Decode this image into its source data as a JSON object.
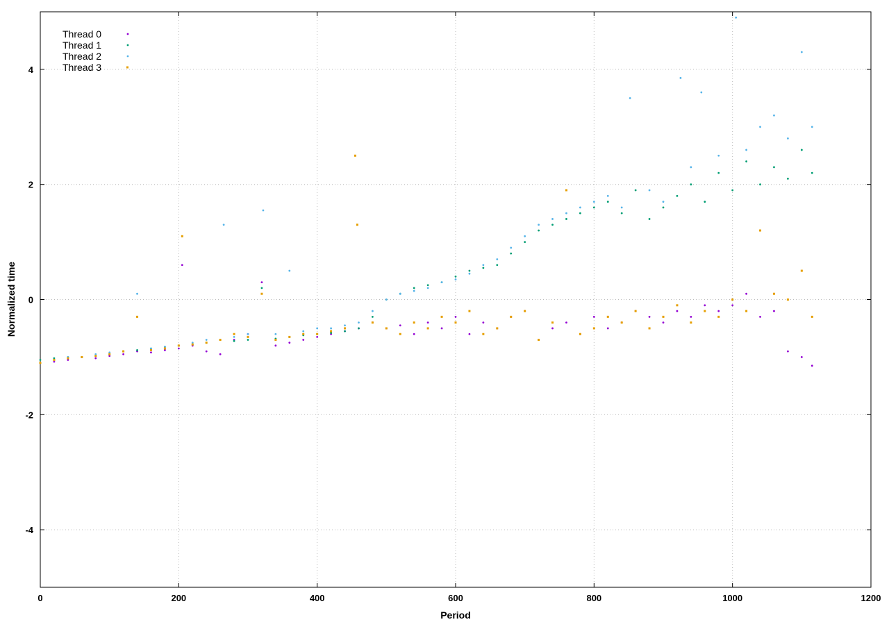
{
  "chart_data": {
    "type": "scatter",
    "title": "",
    "xlabel": "Period",
    "ylabel": "Normalized time",
    "xlim": [
      0,
      1200
    ],
    "ylim": [
      -5,
      5
    ],
    "xticks": [
      0,
      200,
      400,
      600,
      800,
      1000,
      1200
    ],
    "yticks": [
      -4,
      -2,
      0,
      2,
      4
    ],
    "grid": true,
    "legend_position": "top-left",
    "series": [
      {
        "name": "Thread 0",
        "color": "#9400d3",
        "marker": "dot",
        "x": [
          0,
          20,
          40,
          60,
          80,
          100,
          120,
          140,
          160,
          180,
          200,
          205,
          220,
          240,
          260,
          280,
          300,
          320,
          340,
          360,
          380,
          400,
          420,
          440,
          460,
          480,
          500,
          520,
          540,
          560,
          580,
          600,
          620,
          640,
          660,
          680,
          700,
          720,
          740,
          760,
          780,
          800,
          820,
          840,
          860,
          880,
          900,
          920,
          940,
          960,
          980,
          1000,
          1020,
          1040,
          1060,
          1080,
          1100,
          1115
        ],
        "y": [
          -1.1,
          -1.08,
          -1.05,
          -1.0,
          -1.02,
          -0.98,
          -0.95,
          -0.9,
          -0.92,
          -0.88,
          -0.85,
          0.6,
          -0.8,
          -0.9,
          -0.95,
          -0.7,
          -0.6,
          0.3,
          -0.8,
          -0.75,
          -0.7,
          -0.65,
          -0.6,
          -0.55,
          -0.5,
          -0.4,
          -0.5,
          -0.45,
          -0.6,
          -0.4,
          -0.5,
          -0.3,
          -0.6,
          -0.4,
          -0.5,
          -0.3,
          -0.2,
          -0.7,
          -0.5,
          -0.4,
          -0.6,
          -0.3,
          -0.5,
          -0.4,
          -0.2,
          -0.3,
          -0.4,
          -0.2,
          -0.3,
          -0.1,
          -0.2,
          -0.1,
          0.1,
          -0.3,
          -0.2,
          -0.9,
          -1.0,
          -1.15
        ]
      },
      {
        "name": "Thread 1",
        "color": "#009e73",
        "marker": "dot",
        "x": [
          0,
          20,
          40,
          60,
          80,
          100,
          120,
          140,
          160,
          180,
          200,
          220,
          240,
          260,
          280,
          300,
          320,
          340,
          360,
          380,
          400,
          420,
          440,
          460,
          480,
          500,
          520,
          540,
          560,
          580,
          600,
          620,
          640,
          660,
          680,
          700,
          720,
          740,
          760,
          780,
          800,
          820,
          840,
          860,
          880,
          900,
          920,
          940,
          960,
          980,
          1000,
          1020,
          1040,
          1060,
          1080,
          1100,
          1115
        ],
        "y": [
          -1.05,
          -1.02,
          -1.0,
          -1.0,
          -0.98,
          -0.95,
          -0.9,
          -0.88,
          -0.85,
          -0.82,
          -0.8,
          -0.78,
          -0.75,
          -0.7,
          -0.72,
          -0.7,
          0.2,
          -0.68,
          -0.65,
          -0.62,
          -0.6,
          -0.58,
          -0.55,
          -0.5,
          -0.3,
          0.0,
          0.1,
          0.2,
          0.25,
          0.3,
          0.4,
          0.5,
          0.55,
          0.6,
          0.8,
          1.0,
          1.2,
          1.3,
          1.4,
          1.5,
          1.6,
          1.7,
          1.5,
          1.9,
          1.4,
          1.6,
          1.8,
          2.0,
          1.7,
          2.2,
          1.9,
          2.4,
          2.0,
          2.3,
          2.1,
          2.6,
          2.2
        ]
      },
      {
        "name": "Thread 2",
        "color": "#56b4e9",
        "marker": "dot",
        "x": [
          0,
          20,
          40,
          60,
          80,
          100,
          120,
          140,
          160,
          180,
          200,
          220,
          240,
          265,
          280,
          300,
          322,
          340,
          360,
          380,
          400,
          420,
          440,
          460,
          480,
          500,
          520,
          540,
          560,
          580,
          600,
          620,
          640,
          660,
          680,
          700,
          720,
          740,
          760,
          780,
          800,
          820,
          840,
          852,
          880,
          900,
          925,
          940,
          955,
          980,
          1005,
          1020,
          1040,
          1060,
          1080,
          1100,
          1115
        ],
        "y": [
          -1.1,
          -1.05,
          -1.0,
          -1.0,
          -0.95,
          -0.92,
          -0.9,
          0.1,
          -0.85,
          -0.82,
          -0.8,
          -0.75,
          -0.7,
          1.3,
          -0.65,
          -0.6,
          1.55,
          -0.6,
          0.5,
          -0.55,
          -0.5,
          -0.5,
          -0.45,
          -0.4,
          -0.2,
          0.0,
          0.1,
          0.15,
          0.2,
          0.3,
          0.35,
          0.45,
          0.6,
          0.7,
          0.9,
          1.1,
          1.3,
          1.4,
          1.5,
          1.6,
          1.7,
          1.8,
          1.6,
          3.5,
          1.9,
          1.7,
          3.85,
          2.3,
          3.6,
          2.5,
          4.9,
          2.6,
          3.0,
          3.2,
          2.8,
          4.3,
          3.0
        ]
      },
      {
        "name": "Thread 3",
        "color": "#e69f00",
        "marker": "square",
        "x": [
          0,
          20,
          40,
          60,
          80,
          100,
          120,
          140,
          160,
          180,
          200,
          205,
          220,
          240,
          260,
          280,
          300,
          320,
          340,
          360,
          380,
          400,
          420,
          440,
          455,
          458,
          480,
          500,
          520,
          540,
          560,
          580,
          600,
          620,
          640,
          660,
          680,
          700,
          720,
          740,
          760,
          780,
          800,
          820,
          840,
          860,
          880,
          900,
          920,
          940,
          960,
          980,
          1000,
          1020,
          1040,
          1060,
          1080,
          1100,
          1115
        ],
        "y": [
          -1.1,
          -1.05,
          -1.02,
          -1.0,
          -0.98,
          -0.95,
          -0.9,
          -0.3,
          -0.88,
          -0.85,
          -0.8,
          1.1,
          -0.78,
          -0.75,
          -0.7,
          -0.6,
          -0.65,
          0.1,
          -0.7,
          -0.65,
          -0.6,
          -0.6,
          -0.55,
          -0.5,
          2.5,
          1.3,
          -0.4,
          -0.5,
          -0.6,
          -0.4,
          -0.5,
          -0.3,
          -0.4,
          -0.2,
          -0.6,
          -0.5,
          -0.3,
          -0.2,
          -0.7,
          -0.4,
          1.9,
          -0.6,
          -0.5,
          -0.3,
          -0.4,
          -0.2,
          -0.5,
          -0.3,
          -0.1,
          -0.4,
          -0.2,
          -0.3,
          0.0,
          -0.2,
          1.2,
          0.1,
          0.0,
          0.5,
          -0.3
        ]
      }
    ]
  }
}
